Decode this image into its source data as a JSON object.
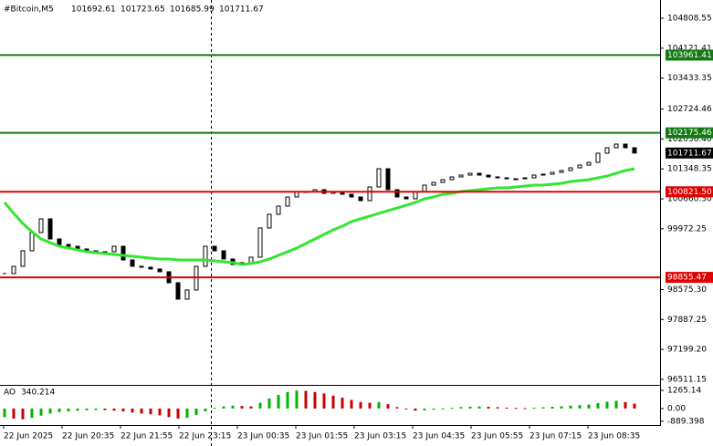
{
  "chart_data": {
    "type": "candlestick",
    "symbol": "#Bitcoin,M5",
    "ohlc": [
      101692.61,
      101723.65,
      101685.99,
      101711.67
    ],
    "x_labels": [
      "22 Jun 2025",
      "22 Jun 20:35",
      "22 Jun 21:55",
      "22 Jun 23:15",
      "23 Jun 00:35",
      "23 Jun 01:55",
      "23 Jun 03:15",
      "23 Jun 04:35",
      "23 Jun 05:55",
      "23 Jun 07:15",
      "23 Jun 08:35"
    ],
    "candle_color": "#000000",
    "closes": [
      98942,
      99109,
      99466,
      99885,
      100199,
      99738,
      99612,
      99570,
      99508,
      99466,
      99424,
      99445,
      99570,
      99256,
      99109,
      99089,
      99047,
      98984,
      98732,
      98355,
      98565,
      99109,
      99570,
      99466,
      99277,
      99151,
      99193,
      99319,
      99990,
      100304,
      100492,
      100702,
      100828,
      100828,
      100870,
      100786,
      100828,
      100765,
      100702,
      100618,
      100932,
      101351,
      100870,
      100702,
      100660,
      100828,
      100974,
      101037,
      101100,
      101163,
      101205,
      101247,
      101205,
      101163,
      101142,
      101121,
      101121,
      101142,
      101205,
      101226,
      101268,
      101310,
      101372,
      101435,
      101498,
      101708,
      101833,
      101917,
      101833,
      101711.67
    ],
    "ma": {
      "color": "#32e632",
      "values": [
        100576,
        100325,
        100094,
        99906,
        99738,
        99654,
        99570,
        99529,
        99487,
        99445,
        99424,
        99403,
        99382,
        99361,
        99340,
        99319,
        99298,
        99277,
        99277,
        99256,
        99256,
        99256,
        99256,
        99235,
        99214,
        99193,
        99151,
        99172,
        99214,
        99277,
        99361,
        99445,
        99529,
        99633,
        99738,
        99843,
        99948,
        100031,
        100136,
        100199,
        100262,
        100325,
        100388,
        100450,
        100513,
        100576,
        100660,
        100702,
        100765,
        100786,
        100828,
        100849,
        100870,
        100890,
        100911,
        100911,
        100932,
        100953,
        100974,
        100974,
        100995,
        101016,
        101058,
        101079,
        101100,
        101142,
        101184,
        101247,
        101310,
        101351
      ]
    },
    "ylim": [
      96385,
      105123
    ],
    "yticks": [
      104808.55,
      104121.41,
      103433.35,
      102724.46,
      {
        "value": 102036.4,
        "label": "102036.40"
      },
      101348.35,
      {
        "value": 100660.3,
        "label": "100660.30"
      },
      99972.25,
      {
        "value": 98575.3,
        "label": "98575.30"
      },
      97887.25,
      {
        "value": 97199.2,
        "label": "97199.20"
      },
      96511.15
    ],
    "levels": [
      {
        "value": 103961.41,
        "color": "#137a13"
      },
      {
        "value": 102175.46,
        "color": "#137a13"
      },
      {
        "value": 100821.5,
        "label": "100821.50",
        "color": "#e00000"
      },
      {
        "value": 98855.47,
        "color": "#e00000"
      }
    ],
    "ao": {
      "name": "AO",
      "up_color": "#00b400",
      "down_color": "#c80000",
      "values": [
        -600,
        -700,
        -750,
        -650,
        -500,
        -350,
        -250,
        -200,
        -150,
        -120,
        -100,
        -110,
        -150,
        -200,
        -280,
        -350,
        -400,
        -480,
        -600,
        -700,
        -650,
        -450,
        -200,
        50,
        150,
        200,
        180,
        150,
        400,
        700,
        950,
        1150,
        1250,
        1230,
        1150,
        1050,
        900,
        750,
        600,
        450,
        400,
        450,
        300,
        100,
        -50,
        -150,
        -120,
        -80,
        -20,
        50,
        100,
        130,
        140,
        120,
        90,
        60,
        40,
        30,
        60,
        90,
        120,
        160,
        200,
        240,
        280,
        380,
        480,
        540,
        450,
        340.214
      ],
      "ylim": [
        -1150,
        1520
      ],
      "yticks": [
        1265.14,
        {
          "value": 0,
          "label": "0.00"
        },
        -889.398
      ]
    }
  }
}
